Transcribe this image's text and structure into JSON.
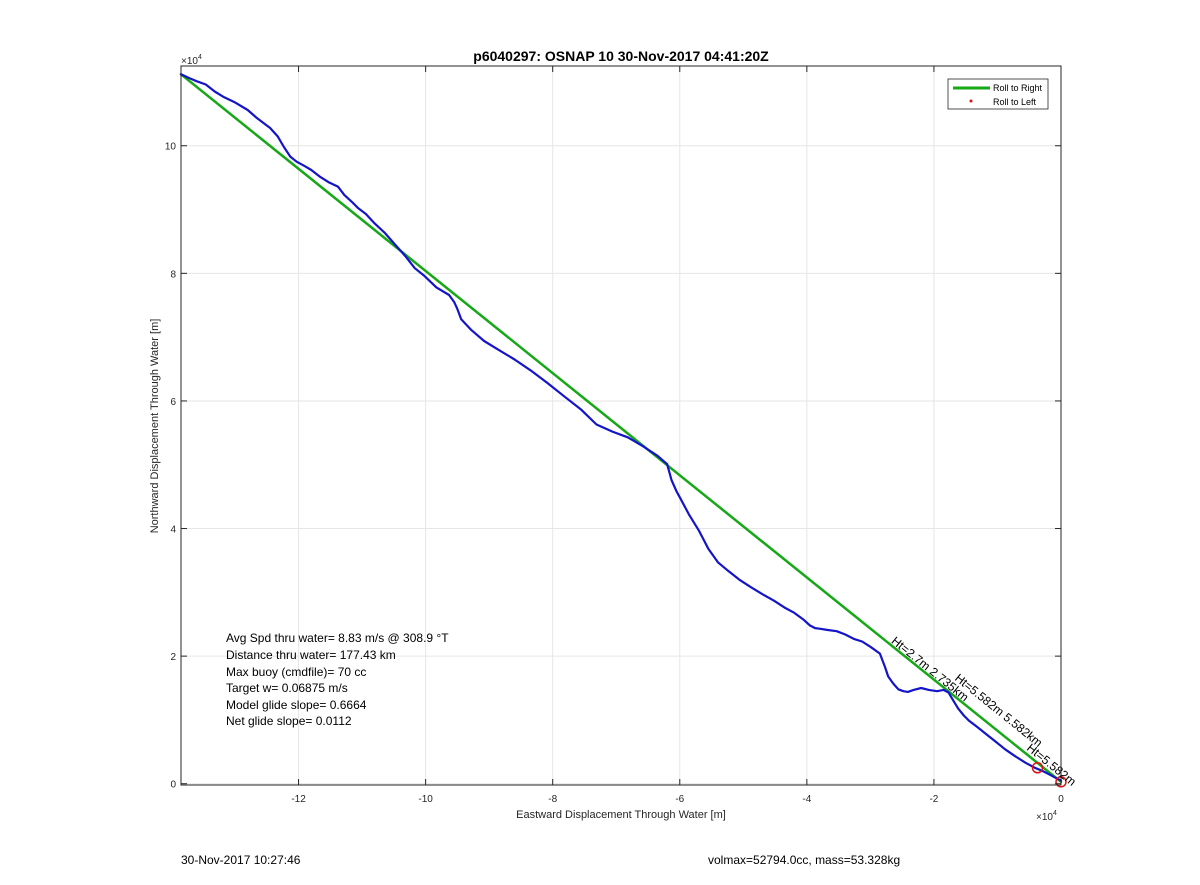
{
  "chart_data": {
    "type": "line",
    "title": "p6040297: OSNAP 10 30-Nov-2017 04:41:20Z",
    "xlabel": "Eastward Displacement Through Water [m]",
    "ylabel": "Northward Displacement Through Water [m]",
    "x_exponent_label": "×10",
    "x_exponent_power": "4",
    "y_exponent_label": "×10",
    "y_exponent_power": "4",
    "xlim": [
      -138500,
      0
    ],
    "ylim": [
      -200,
      112500
    ],
    "x_ticks": [
      -120000,
      -100000,
      -80000,
      -60000,
      -40000,
      -20000,
      0
    ],
    "x_tick_labels": [
      "-12",
      "-10",
      "-8",
      "-6",
      "-4",
      "-2",
      "0"
    ],
    "y_ticks": [
      0,
      20000,
      40000,
      60000,
      80000,
      100000
    ],
    "y_tick_labels": [
      "0",
      "2",
      "4",
      "6",
      "8",
      "10"
    ],
    "grid": true,
    "legend_position": "top-right",
    "legend": [
      {
        "label": "Roll to Right",
        "color": "#17a817",
        "marker": "line"
      },
      {
        "label": "Roll to Left",
        "color": "#e01010",
        "marker": "dot"
      }
    ],
    "series": [
      {
        "name": "Roll to Right",
        "color": "#17a817",
        "x": [
          -138500,
          0
        ],
        "y": [
          111200,
          300
        ]
      },
      {
        "color": "#1414c8",
        "x": [
          -138500,
          -137200,
          -136000,
          -134600,
          -133200,
          -131700,
          -130000,
          -128000,
          -126500,
          -124500,
          -123300,
          -122300,
          -121300,
          -120300,
          -119000,
          -118000,
          -116700,
          -115300,
          -113800,
          -112800,
          -111600,
          -110600,
          -109400,
          -108000,
          -106400,
          -104800,
          -103200,
          -101700,
          -100200,
          -98300,
          -96300,
          -95500,
          -95000,
          -94400,
          -92800,
          -90800,
          -88500,
          -86000,
          -83500,
          -80800,
          -78300,
          -75600,
          -73100,
          -70600,
          -68200,
          -65800,
          -63500,
          -62000,
          -61300,
          -60500,
          -60000,
          -58500,
          -57000,
          -55500,
          -54000,
          -52300,
          -50500,
          -48800,
          -47000,
          -45200,
          -43500,
          -42000,
          -40500,
          -39500,
          -38700,
          -38000,
          -36700,
          -35300,
          -34000,
          -32600,
          -31300,
          -29900,
          -28500,
          -27700,
          -27200,
          -26400,
          -25600,
          -24800,
          -24100,
          -23200,
          -22000,
          -20800,
          -19500,
          -18500,
          -17700,
          -17000,
          -16200,
          -15300,
          -14500,
          -13200,
          -11800,
          -10300,
          -8800,
          -7200,
          -5600,
          -4100,
          -2900,
          -1900,
          -1000,
          -400,
          0
        ],
        "y": [
          111200,
          110600,
          110100,
          109600,
          108500,
          107600,
          106800,
          105600,
          104300,
          102800,
          101500,
          99800,
          98300,
          97500,
          96800,
          96200,
          95200,
          94300,
          93600,
          92300,
          91200,
          90200,
          89300,
          87800,
          86300,
          84500,
          82700,
          80800,
          79600,
          77800,
          76600,
          75500,
          74400,
          72800,
          71100,
          69400,
          68000,
          66500,
          64800,
          62800,
          60800,
          58700,
          56300,
          55200,
          54300,
          52900,
          51400,
          50100,
          47600,
          45800,
          44900,
          42100,
          39700,
          36800,
          34700,
          33300,
          31900,
          30800,
          29700,
          28700,
          27600,
          26800,
          25700,
          24800,
          24400,
          24300,
          24100,
          23900,
          23400,
          22700,
          22300,
          21400,
          20400,
          18300,
          16800,
          15700,
          14800,
          14500,
          14400,
          14700,
          15000,
          14700,
          14500,
          14700,
          14300,
          13100,
          11800,
          10700,
          9900,
          8900,
          7800,
          6600,
          5400,
          4300,
          3300,
          2500,
          2000,
          1500,
          1000,
          700,
          500
        ]
      }
    ],
    "markers": [
      {
        "x": -3700,
        "y": 2500,
        "shape": "circle",
        "color": "#e01010"
      },
      {
        "x": 0,
        "y": 300,
        "shape": "circle",
        "color": "#e01010"
      }
    ],
    "annotation_box": [
      "Avg Spd thru water=  8.83 m/s @ 308.9 °T",
      "Distance thru water= 177.43 km",
      "Max buoy (cmdfile)= 70 cc",
      "Target w= 0.06875 m/s",
      "Model glide slope= 0.6664",
      "Net glide slope= 0.0112"
    ],
    "rotated_annotations": [
      {
        "text": "Ht=2.7m 2.735km",
        "x": -21000,
        "y": 17500,
        "angle": 39
      },
      {
        "text": "Ht=5.582m 5.582km",
        "x": -10200,
        "y": 11000,
        "angle": 39
      },
      {
        "text": "Ht=5.582m",
        "x": -1900,
        "y": 2500,
        "angle": 39
      }
    ]
  },
  "footer": {
    "left": "30-Nov-2017 10:27:46",
    "right": "volmax=52794.0cc, mass=53.328kg"
  }
}
